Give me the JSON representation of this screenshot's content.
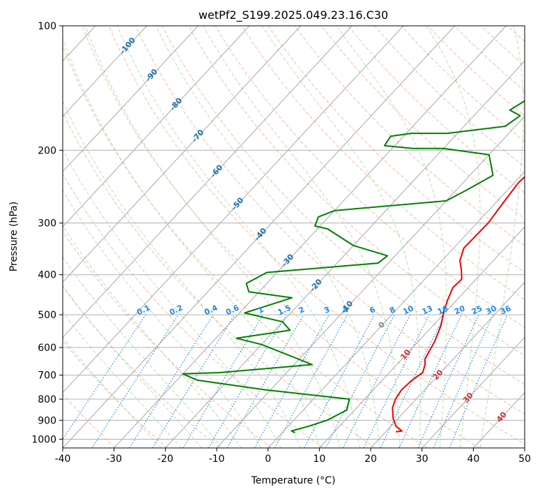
{
  "chart_data": {
    "type": "line",
    "title": "wetPf2_S199.2025.049.23.16.C30",
    "xlabel": "Temperature (°C)",
    "ylabel": "Pressure (hPa)",
    "xlim": [
      -40,
      50
    ],
    "ylim": [
      1050,
      100
    ],
    "y_scale": "log",
    "x_ticks": [
      -40,
      -30,
      -20,
      -10,
      0,
      10,
      20,
      30,
      40,
      50
    ],
    "y_ticks": [
      100,
      200,
      300,
      400,
      500,
      600,
      700,
      800,
      900,
      1000
    ],
    "grid": true,
    "series": [
      {
        "color": "#ee0000",
        "points": [
          [
            22,
            960
          ],
          [
            23,
            955
          ],
          [
            21,
            930
          ],
          [
            19,
            890
          ],
          [
            17,
            840
          ],
          [
            16,
            800
          ],
          [
            15.5,
            760
          ],
          [
            15.8,
            720
          ],
          [
            16.5,
            690
          ],
          [
            15.5,
            660
          ],
          [
            14.5,
            640
          ],
          [
            13.2,
            580
          ],
          [
            11.5,
            530
          ],
          [
            9.5,
            490
          ],
          [
            8.2,
            460
          ],
          [
            7,
            430
          ],
          [
            7.2,
            410
          ],
          [
            5.5,
            390
          ],
          [
            3.5,
            370
          ],
          [
            2,
            345
          ],
          [
            2.2,
            300
          ],
          [
            1.5,
            270
          ],
          [
            0.8,
            240
          ],
          [
            1.2,
            220
          ],
          [
            3,
            205
          ],
          [
            7,
            195
          ],
          [
            9.5,
            185
          ],
          [
            10,
            170
          ],
          [
            9.5,
            160
          ],
          [
            10.5,
            150
          ],
          [
            13,
            140
          ],
          [
            13.5,
            125
          ],
          [
            13.8,
            115
          ],
          [
            13.5,
            108
          ],
          [
            15,
            100
          ]
        ]
      },
      {
        "color": "#008000",
        "points": [
          [
            2.5,
            965
          ],
          [
            1.5,
            955
          ],
          [
            4,
            930
          ],
          [
            6.5,
            900
          ],
          [
            8.5,
            850
          ],
          [
            7,
            800
          ],
          [
            -11,
            760
          ],
          [
            -26,
            720
          ],
          [
            -30,
            695
          ],
          [
            -23,
            690
          ],
          [
            -6.5,
            660
          ],
          [
            -14,
            620
          ],
          [
            -20,
            590
          ],
          [
            -26,
            570
          ],
          [
            -17,
            545
          ],
          [
            -20,
            520
          ],
          [
            -29,
            495
          ],
          [
            -25,
            470
          ],
          [
            -22.5,
            455
          ],
          [
            -32,
            440
          ],
          [
            -34,
            420
          ],
          [
            -32,
            395
          ],
          [
            -12,
            375
          ],
          [
            -11.5,
            360
          ],
          [
            -20,
            340
          ],
          [
            -28,
            310
          ],
          [
            -31,
            305
          ],
          [
            -32,
            290
          ],
          [
            -30,
            280
          ],
          [
            -10,
            265
          ],
          [
            -8,
            250
          ],
          [
            -5.5,
            230
          ],
          [
            -10,
            205
          ],
          [
            -20,
            198
          ],
          [
            -26,
            198
          ],
          [
            -32,
            195
          ],
          [
            -32.5,
            185
          ],
          [
            -29,
            182
          ],
          [
            -22,
            182
          ],
          [
            -12,
            175
          ],
          [
            -11,
            165
          ],
          [
            -14,
            160
          ],
          [
            -12.5,
            150
          ],
          [
            -4.5,
            142
          ],
          [
            -2.5,
            130
          ],
          [
            -0.5,
            118
          ],
          [
            2,
            108
          ],
          [
            3,
            100
          ]
        ]
      }
    ],
    "annotations": {
      "isotherm_labels": [
        "-100",
        "-90",
        "-80",
        "-70",
        "-60",
        "-50",
        "-40",
        "-30",
        "-20",
        "-10",
        "0",
        "10",
        "20",
        "30",
        "40"
      ],
      "mixing_ratio_labels": [
        "0.1",
        "0.2",
        "0.4",
        "0.6",
        "1",
        "1.5",
        "2",
        "3",
        "4",
        "6",
        "8",
        "10",
        "13",
        "16",
        "20",
        "25",
        "30",
        "36"
      ]
    },
    "background_lines": {
      "isotherms": {
        "color": "#999999",
        "style": "solid"
      },
      "dry_adiabats": {
        "color": "#f4a582",
        "style": "dashed"
      },
      "moist_adiabats": {
        "color": "#a6d8a0",
        "style": "dashed"
      },
      "mixing_ratio": {
        "color": "#1e88e5",
        "style": "dotted"
      }
    }
  }
}
